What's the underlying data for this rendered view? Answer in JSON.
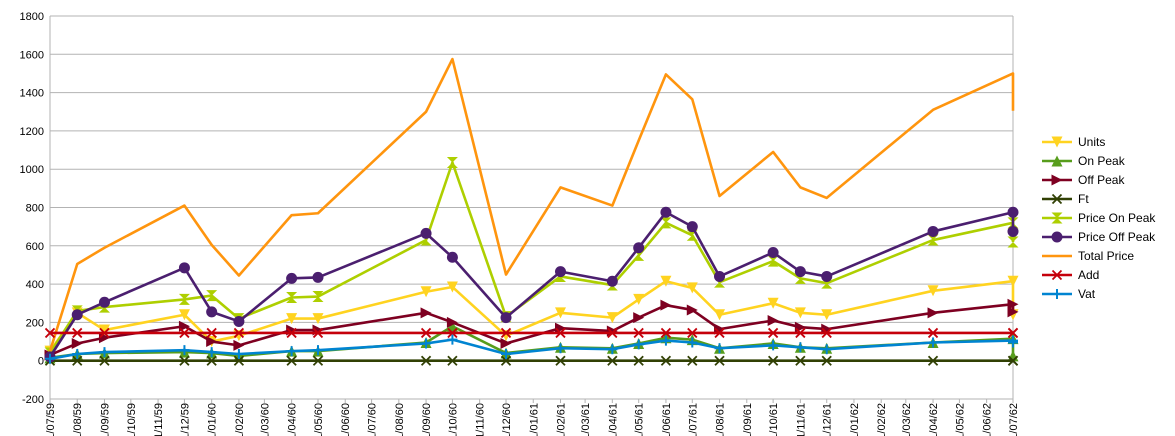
{
  "chart_data": {
    "type": "line",
    "title": "",
    "xlabel": "",
    "ylabel": "",
    "ylim": [
      -200,
      1800
    ],
    "yticks": [
      -200,
      0,
      200,
      400,
      600,
      800,
      1000,
      1200,
      1400,
      1600,
      1800
    ],
    "xlim": [
      "11/07/59",
      "11/07/62"
    ],
    "xticks": [
      "11/07/59",
      "11/08/59",
      "11/09/59",
      "11/10/59",
      "11/11/59",
      "11/12/59",
      "11/01/60",
      "11/02/60",
      "11/03/60",
      "11/04/60",
      "11/05/60",
      "11/06/60",
      "11/07/60",
      "11/08/60",
      "11/09/60",
      "11/10/60",
      "11/11/60",
      "11/12/60",
      "11/01/61",
      "11/02/61",
      "11/03/61",
      "11/04/61",
      "11/05/61",
      "11/06/61",
      "11/07/61",
      "11/08/61",
      "11/09/61",
      "11/10/61",
      "11/11/61",
      "11/12/61",
      "11/01/62",
      "11/02/62",
      "11/03/62",
      "11/04/62",
      "11/05/62",
      "11/06/62",
      "11/07/62"
    ],
    "grid": "horizontal",
    "legend_position": "right",
    "x": [
      "11/07/59",
      "11/08/59",
      "11/09/59",
      "11/12/59",
      "11/01/60",
      "11/02/60",
      "11/04/60",
      "11/05/60",
      "11/09/60",
      "11/10/60",
      "11/12/60",
      "11/02/61",
      "11/04/61",
      "11/05/61",
      "11/06/61",
      "11/07/61",
      "11/08/61",
      "11/10/61",
      "11/11/61",
      "11/12/61",
      "11/04/62",
      "11/07/62",
      "11/07/62"
    ],
    "series": [
      {
        "name": "Units",
        "color": "#ffd320",
        "marker": "triangle-down",
        "values": [
          50,
          250,
          160,
          240,
          100,
          130,
          220,
          220,
          360,
          385,
          130,
          250,
          225,
          320,
          415,
          380,
          240,
          300,
          250,
          240,
          365,
          415,
          240
        ]
      },
      {
        "name": "On Peak",
        "color": "#579d1c",
        "marker": "triangle-up",
        "values": [
          15,
          35,
          40,
          45,
          40,
          25,
          50,
          50,
          95,
          180,
          40,
          70,
          65,
          90,
          120,
          110,
          65,
          90,
          70,
          65,
          95,
          115,
          25
        ]
      },
      {
        "name": "Off Peak",
        "color": "#7e0021",
        "marker": "triangle-right",
        "values": [
          30,
          90,
          120,
          180,
          100,
          80,
          160,
          160,
          250,
          200,
          90,
          170,
          155,
          225,
          290,
          265,
          165,
          210,
          175,
          165,
          250,
          295,
          255
        ]
      },
      {
        "name": "Ft",
        "color": "#314004",
        "marker": "x",
        "values": [
          0,
          0,
          0,
          0,
          0,
          0,
          0,
          0,
          0,
          0,
          0,
          0,
          0,
          0,
          0,
          0,
          0,
          0,
          0,
          0,
          0,
          0,
          0
        ]
      },
      {
        "name": "Price On Peak",
        "color": "#aecf00",
        "marker": "hourglass",
        "values": [
          40,
          260,
          280,
          320,
          340,
          220,
          330,
          335,
          630,
          1035,
          230,
          440,
          395,
          550,
          720,
          655,
          410,
          520,
          430,
          405,
          630,
          720,
          620
        ]
      },
      {
        "name": "Price Off Peak",
        "color": "#4b1f6f",
        "marker": "circle",
        "values": [
          20,
          240,
          305,
          485,
          255,
          205,
          430,
          435,
          665,
          540,
          225,
          465,
          415,
          590,
          775,
          700,
          440,
          565,
          465,
          440,
          675,
          775,
          675
        ]
      },
      {
        "name": "Total Price",
        "color": "#ff950e",
        "marker": "none",
        "values": [
          50,
          505,
          590,
          810,
          605,
          445,
          760,
          770,
          1300,
          1575,
          450,
          905,
          810,
          1150,
          1495,
          1365,
          860,
          1090,
          905,
          850,
          1310,
          1500,
          1305
        ]
      },
      {
        "name": "Add",
        "color": "#c5000b",
        "marker": "x",
        "values": [
          145,
          145,
          145,
          145,
          145,
          145,
          145,
          145,
          145,
          145,
          145,
          145,
          145,
          145,
          145,
          145,
          145,
          145,
          145,
          145,
          145,
          145,
          145
        ]
      },
      {
        "name": "Vat",
        "color": "#0084d1",
        "marker": "plus",
        "values": [
          10,
          35,
          45,
          55,
          45,
          35,
          50,
          55,
          90,
          110,
          35,
          65,
          60,
          85,
          105,
          95,
          65,
          80,
          70,
          60,
          95,
          105,
          95
        ]
      }
    ]
  }
}
